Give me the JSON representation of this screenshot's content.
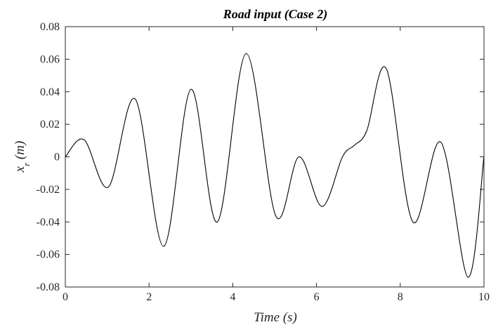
{
  "chart_data": {
    "type": "line",
    "title": "Road input (Case 2)",
    "xlabel": "Time (s)",
    "ylabel": {
      "symbol": "x",
      "subscript": "r",
      "unit": "(m)"
    },
    "xlim": [
      0,
      10
    ],
    "ylim": [
      -0.08,
      0.08
    ],
    "xticks": [
      "0",
      "2",
      "4",
      "6",
      "8",
      "10"
    ],
    "yticks": [
      "-0.08",
      "-0.06",
      "-0.04",
      "-0.02",
      "0",
      "0.02",
      "0.04",
      "0.06",
      "0.08"
    ],
    "grid": false,
    "series": [
      {
        "color": "#000000",
        "x": [
          0,
          0.45,
          1.03,
          1.67,
          2.35,
          3.0,
          3.63,
          4.32,
          5.03,
          5.58,
          6.13,
          6.62,
          6.9,
          7.2,
          7.67,
          8.3,
          8.97,
          9.62,
          10.0
        ],
        "y": [
          0.0,
          0.0105,
          -0.0185,
          0.0355,
          -0.055,
          0.0415,
          -0.04,
          0.0635,
          -0.0365,
          0.0,
          -0.0305,
          0.0,
          0.007,
          0.016,
          0.054,
          -0.04,
          0.009,
          -0.074,
          0.0
        ]
      }
    ]
  }
}
